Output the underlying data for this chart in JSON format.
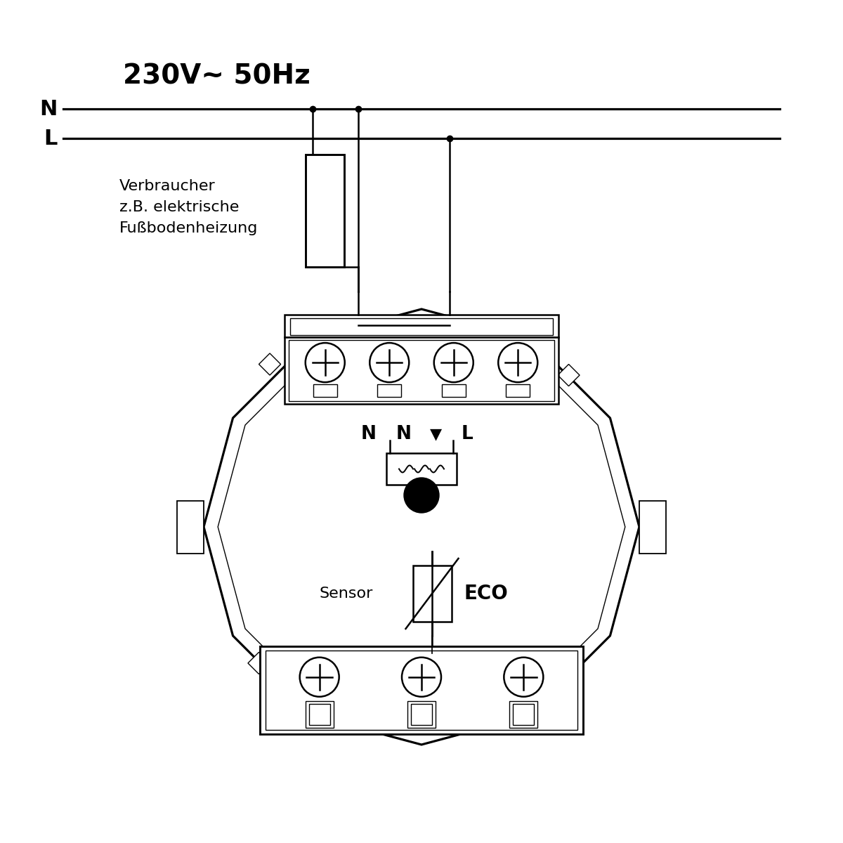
{
  "bg_color": "#ffffff",
  "line_color": "#000000",
  "title_voltage": "230V~ 50Hz",
  "label_N": "N",
  "label_L": "L",
  "label_verbraucher": "Verbraucher\nz.B. elektrische\nFußbodenheizung",
  "label_sensor": "Sensor",
  "label_eco": "ECO",
  "line_lw": 1.8,
  "thin_lw": 1.0
}
